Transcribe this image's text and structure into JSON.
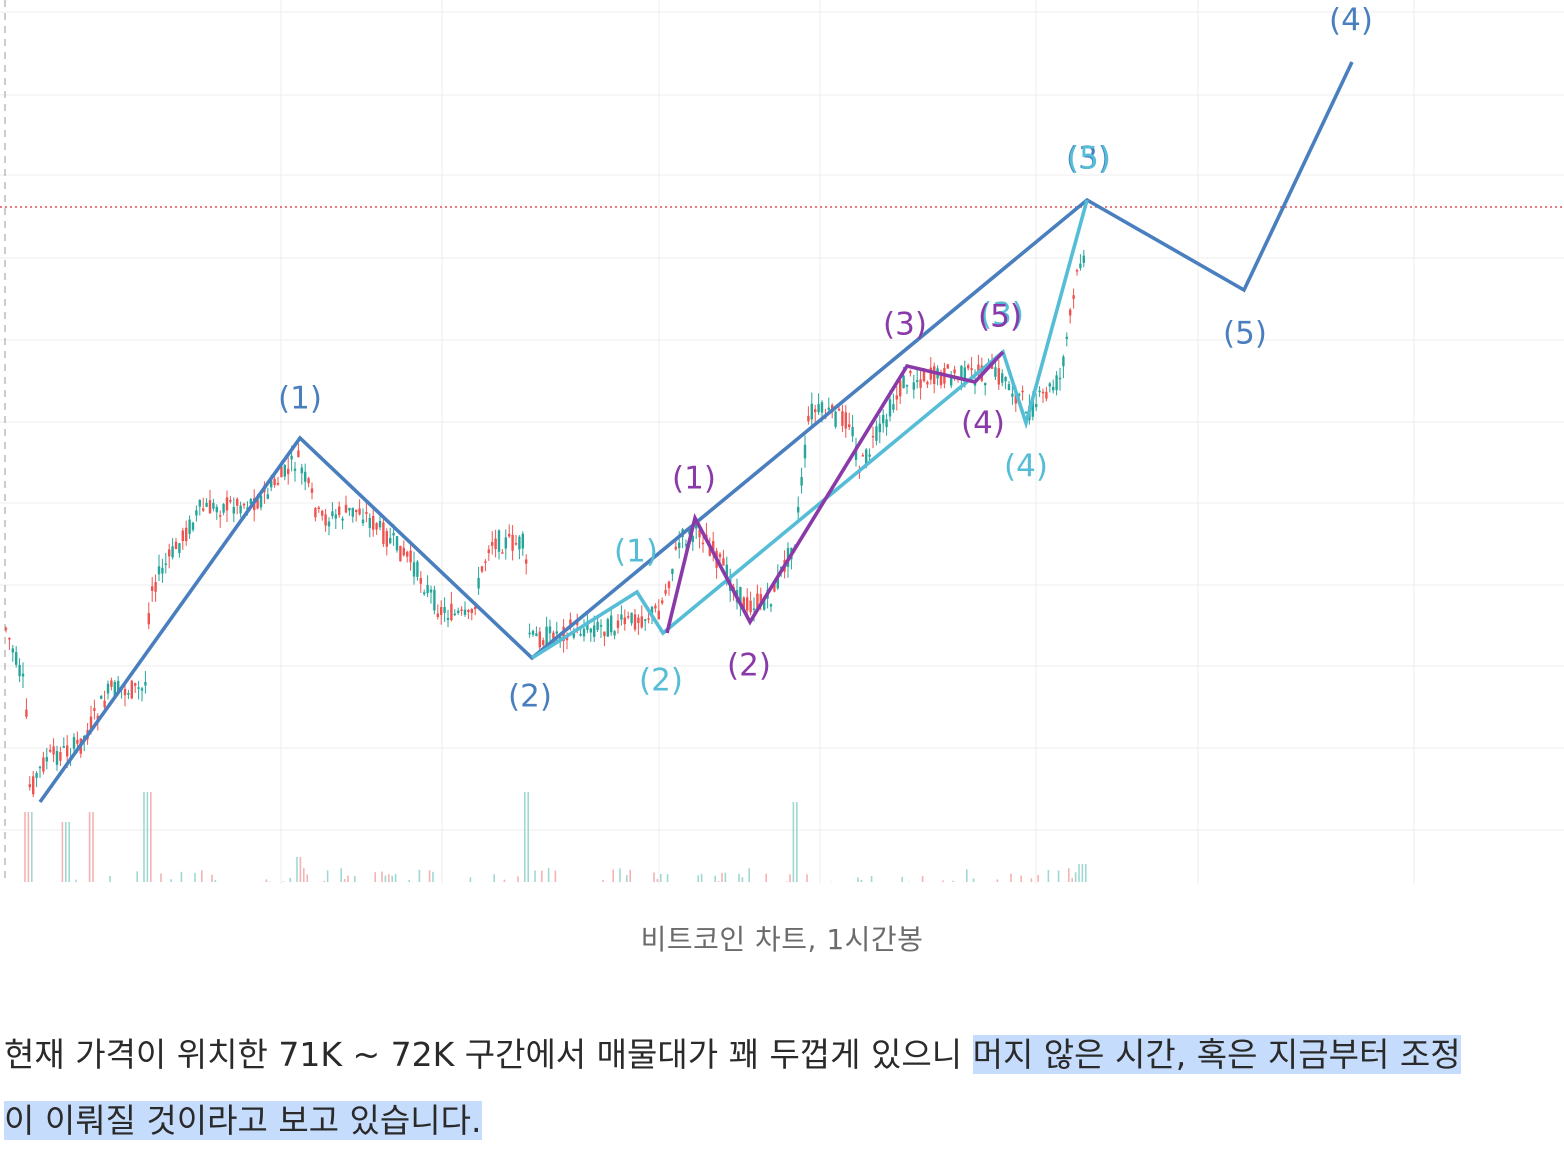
{
  "chart_data": {
    "type": "line",
    "title": "",
    "xlabel": "",
    "ylabel": "",
    "grid": true,
    "candles_up_color": "#26a69a",
    "candles_down_color": "#ef5350",
    "reference_line_color": "#e05050",
    "series": [
      {
        "name": "",
        "color": "#4a7fbf",
        "points": [
          [
            1,
            1.0
          ],
          [
            9,
            6.0
          ],
          [
            16,
            1.2
          ],
          [
            23,
            3.7
          ],
          [
            33,
            4.3
          ],
          [
            30,
            6.5
          ],
          [
            39,
            8.6
          ]
        ],
        "labels": [
          "",
          "(1)",
          "(2)",
          "(3)",
          "(5)",
          "(4)",
          "(5)"
        ]
      },
      {
        "name": "",
        "color": "#55bdd6",
        "points": [
          [
            16,
            1.2
          ],
          [
            19,
            1.6
          ],
          [
            20,
            1.3
          ],
          [
            30,
            3.6
          ],
          [
            31,
            3.1
          ],
          [
            33,
            4.3
          ]
        ],
        "labels": [
          "",
          "(1)",
          "(2)",
          "(3)",
          "(4)",
          "(5)"
        ]
      },
      {
        "name": "",
        "color": "#8a3aa8",
        "points": [
          [
            20,
            1.3
          ],
          [
            21,
            2.9
          ],
          [
            22,
            1.4
          ],
          [
            27,
            3.8
          ],
          [
            29,
            3.7
          ],
          [
            30,
            3.6
          ]
        ],
        "labels": [
          "",
          "(1)",
          "(2)",
          "(3)",
          "(4)",
          "(5)"
        ]
      }
    ]
  },
  "caption": "비트코인 차트, 1시간봉",
  "body": {
    "text_plain": " 현재 가격이 위치한 71K ~ 72K 구간에서 매물대가 꽤 두껍게 있으니 ",
    "text_highlight_1": "머지 않은 시간, 혹은 지금부터 조정",
    "text_highlight_2": "이 이뤄질 것이라고 보고 있습니다."
  }
}
